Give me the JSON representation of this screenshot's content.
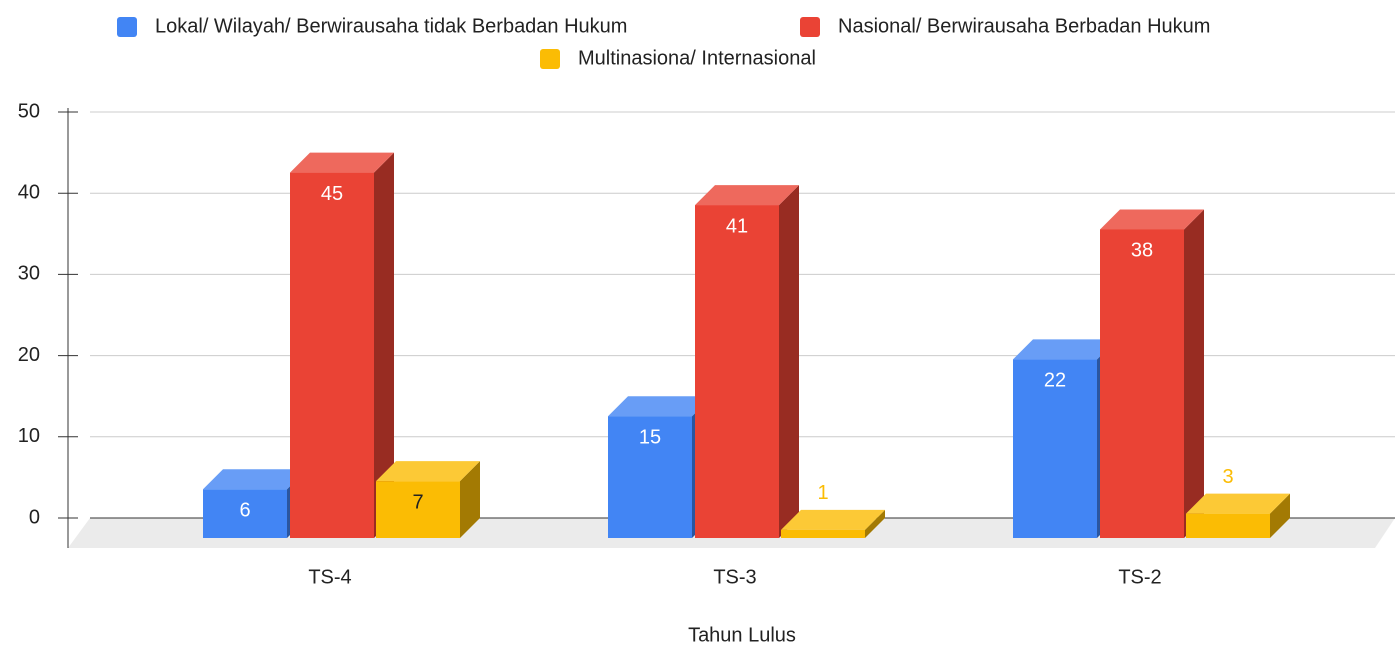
{
  "chart_data": {
    "type": "bar3d",
    "x_label": "Tahun Lulus",
    "categories": [
      "TS-4",
      "TS-3",
      "TS-2"
    ],
    "series": [
      {
        "name": "Lokal/ Wilayah/ Berwirausaha tidak Berbadan Hukum",
        "color": "#4285f4",
        "values": [
          6,
          15,
          22
        ]
      },
      {
        "name": "Nasional/ Berwirausaha Berbadan Hukum",
        "color": "#ea4335",
        "values": [
          45,
          41,
          38
        ]
      },
      {
        "name": "Multinasiona/ Internasional",
        "color": "#fbbc04",
        "values": [
          7,
          1,
          3
        ]
      }
    ],
    "ylim": [
      0,
      50
    ],
    "yticks": [
      0,
      10,
      20,
      30,
      40,
      50
    ],
    "grid": true,
    "legend": "top"
  }
}
